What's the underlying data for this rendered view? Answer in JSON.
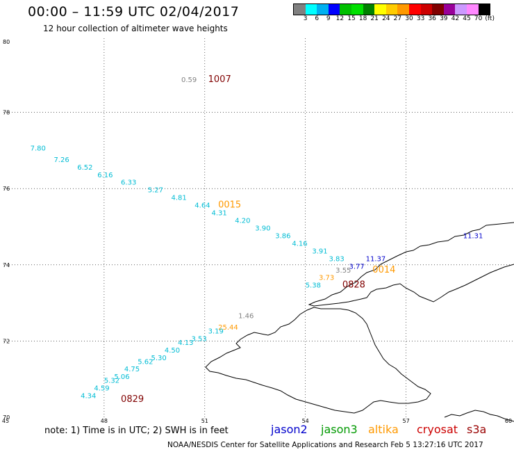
{
  "header": {
    "title": "00:00 – 11:59 UTC 02/04/2017",
    "subtitle": "12 hour collection of altimeter wave heights"
  },
  "colorbar": {
    "colors": [
      "#808080",
      "#00ffff",
      "#00b0f0",
      "#0000ff",
      "#00c000",
      "#00e000",
      "#008000",
      "#ffff00",
      "#ffcc00",
      "#ff9900",
      "#ff0000",
      "#cc0000",
      "#800000",
      "#990099",
      "#cc99ff",
      "#ff88ff",
      "#000000"
    ],
    "ticks": [
      "3",
      "6",
      "9",
      "12",
      "15",
      "18",
      "21",
      "24",
      "27",
      "30",
      "33",
      "36",
      "39",
      "42",
      "45",
      "70",
      "(ft)"
    ]
  },
  "map": {
    "x_ticks": [
      "45",
      "48",
      "51",
      "54",
      "57",
      "60"
    ],
    "y_ticks": [
      "80",
      "78",
      "76",
      "74",
      "72",
      "70"
    ]
  },
  "observations": [
    {
      "text": "0.59",
      "color": "#808080",
      "lon": 50.3,
      "lat": 78.8
    },
    {
      "text": "7.80",
      "color": "#00bcd4",
      "lon": 45.8,
      "lat": 77.0
    },
    {
      "text": "7.26",
      "color": "#00bcd4",
      "lon": 46.5,
      "lat": 76.7
    },
    {
      "text": "6.52",
      "color": "#00bcd4",
      "lon": 47.2,
      "lat": 76.5
    },
    {
      "text": "6.16",
      "color": "#00bcd4",
      "lon": 47.8,
      "lat": 76.3
    },
    {
      "text": "6.33",
      "color": "#00bcd4",
      "lon": 48.5,
      "lat": 76.1
    },
    {
      "text": "5.27",
      "color": "#00bcd4",
      "lon": 49.3,
      "lat": 75.9
    },
    {
      "text": "4.81",
      "color": "#00bcd4",
      "lon": 50.0,
      "lat": 75.7
    },
    {
      "text": "4.64",
      "color": "#00bcd4",
      "lon": 50.7,
      "lat": 75.5
    },
    {
      "text": "4.31",
      "color": "#00bcd4",
      "lon": 51.2,
      "lat": 75.3
    },
    {
      "text": "4.20",
      "color": "#00bcd4",
      "lon": 51.9,
      "lat": 75.1
    },
    {
      "text": "3.90",
      "color": "#00bcd4",
      "lon": 52.5,
      "lat": 74.9
    },
    {
      "text": "3.86",
      "color": "#00bcd4",
      "lon": 53.1,
      "lat": 74.7
    },
    {
      "text": "4.16",
      "color": "#00bcd4",
      "lon": 53.6,
      "lat": 74.5
    },
    {
      "text": "3.91",
      "color": "#00bcd4",
      "lon": 54.2,
      "lat": 74.3
    },
    {
      "text": "3.83",
      "color": "#00bcd4",
      "lon": 54.7,
      "lat": 74.1
    },
    {
      "text": "11.37",
      "color": "#0000cc",
      "lon": 55.8,
      "lat": 74.1
    },
    {
      "text": "3.77",
      "color": "#0000cc",
      "lon": 55.3,
      "lat": 73.9
    },
    {
      "text": "3.55",
      "color": "#808080",
      "lon": 54.9,
      "lat": 73.8
    },
    {
      "text": "3.73",
      "color": "#ff9900",
      "lon": 54.4,
      "lat": 73.6
    },
    {
      "text": "5.38",
      "color": "#00bcd4",
      "lon": 54.0,
      "lat": 73.4
    },
    {
      "text": "11.31",
      "color": "#0000cc",
      "lon": 58.7,
      "lat": 74.7
    },
    {
      "text": "1.46",
      "color": "#808080",
      "lon": 52.0,
      "lat": 72.6
    },
    {
      "text": "25.44",
      "color": "#ff9900",
      "lon": 51.4,
      "lat": 72.3
    },
    {
      "text": "3.19",
      "color": "#00bcd4",
      "lon": 51.1,
      "lat": 72.2
    },
    {
      "text": "3.53",
      "color": "#00bcd4",
      "lon": 50.6,
      "lat": 72.0
    },
    {
      "text": "4.13",
      "color": "#00bcd4",
      "lon": 50.2,
      "lat": 71.9
    },
    {
      "text": "4.50",
      "color": "#00bcd4",
      "lon": 49.8,
      "lat": 71.7
    },
    {
      "text": "5.30",
      "color": "#00bcd4",
      "lon": 49.4,
      "lat": 71.5
    },
    {
      "text": "5.62",
      "color": "#00bcd4",
      "lon": 49.0,
      "lat": 71.4
    },
    {
      "text": "4.75",
      "color": "#00bcd4",
      "lon": 48.6,
      "lat": 71.2
    },
    {
      "text": "5.06",
      "color": "#00bcd4",
      "lon": 48.3,
      "lat": 71.0
    },
    {
      "text": "5.32",
      "color": "#00bcd4",
      "lon": 48.0,
      "lat": 70.9
    },
    {
      "text": "4.59",
      "color": "#00bcd4",
      "lon": 47.7,
      "lat": 70.7
    },
    {
      "text": "4.34",
      "color": "#00bcd4",
      "lon": 47.3,
      "lat": 70.5
    }
  ],
  "pass_times": [
    {
      "text": "1007",
      "color": "#800000",
      "lon": 51.1,
      "lat": 78.8
    },
    {
      "text": "0015",
      "color": "#ff9900",
      "lon": 51.4,
      "lat": 75.5
    },
    {
      "text": "0014",
      "color": "#ff9900",
      "lon": 56.0,
      "lat": 73.8
    },
    {
      "text": "0828",
      "color": "#800000",
      "lon": 55.1,
      "lat": 73.4
    },
    {
      "text": "0829",
      "color": "#800000",
      "lon": 48.5,
      "lat": 70.4
    }
  ],
  "note": "note:  1) Time is in UTC;  2) SWH is in feet",
  "legend": [
    {
      "name": "jason2",
      "color": "#0000cc"
    },
    {
      "name": "jason3",
      "color": "#009900"
    },
    {
      "name": "altika",
      "color": "#ff9900"
    },
    {
      "name": "cryosat",
      "color": "#cc0000"
    },
    {
      "name": "s3a",
      "color": "#990000"
    }
  ],
  "footer": "NOAA/NESDIS Center for Satellite Applications and Research    Feb  5 13:27:16 UTC 2017"
}
